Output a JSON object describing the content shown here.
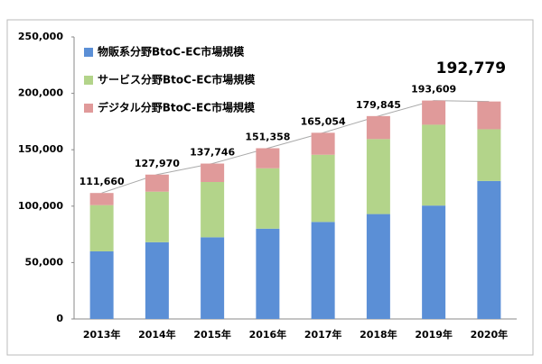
{
  "chart_data": {
    "type": "bar",
    "stacked": true,
    "categories": [
      "2013年",
      "2014年",
      "2015年",
      "2016年",
      "2017年",
      "2018年",
      "2019年",
      "2020年"
    ],
    "series": [
      {
        "name": "物販系分野BtoC-EC市場規模",
        "color": "#5b8fd6",
        "values": [
          59931,
          68043,
          72398,
          80043,
          86008,
          92992,
          100515,
          122333
        ]
      },
      {
        "name": "サービス分野BtoC-EC市場規模",
        "color": "#b3d48a",
        "values": [
          40962,
          44816,
          49014,
          53532,
          59568,
          66471,
          71672,
          45832
        ]
      },
      {
        "name": "デジタル分野BtoC-EC市場規模",
        "color": "#e09a9a",
        "values": [
          10767,
          15111,
          16334,
          17783,
          19478,
          20382,
          21422,
          24614
        ]
      }
    ],
    "totals": [
      111660,
      127970,
      137746,
      151358,
      165054,
      179845,
      193609,
      192779
    ],
    "totals_labels": [
      "111,660",
      "127,970",
      "137,746",
      "151,358",
      "165,054",
      "179,845",
      "193,609",
      "192,779"
    ],
    "ylim": [
      0,
      250000
    ],
    "yticks": [
      0,
      {
        "value": 50000,
        "label": "50,000"
      },
      {
        "value": 100000,
        "label": "100,000"
      },
      {
        "value": 150000,
        "label": "150,000"
      },
      {
        "value": 200000,
        "label": "200,000"
      },
      {
        "value": 250000,
        "label": "250,000"
      }
    ],
    "legend": "top-left"
  }
}
